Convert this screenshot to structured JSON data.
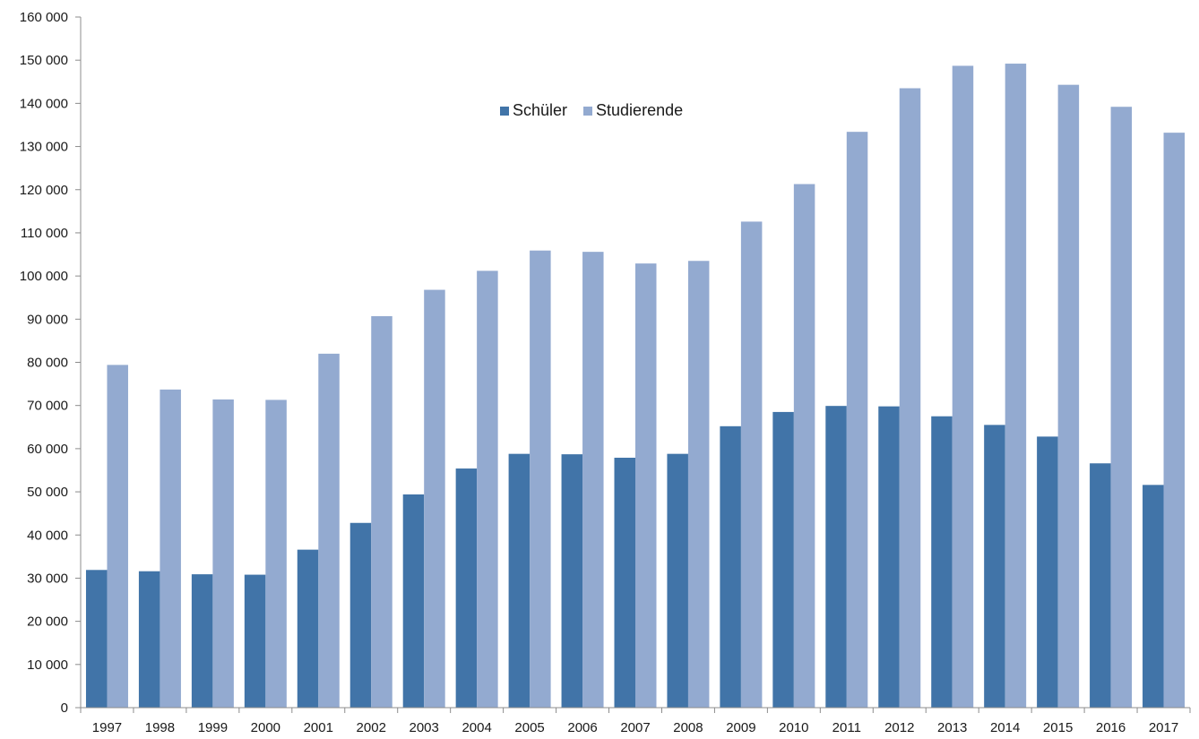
{
  "chart_data": {
    "type": "bar",
    "categories": [
      "1997",
      "1998",
      "1999",
      "2000",
      "2001",
      "2002",
      "2003",
      "2004",
      "2005",
      "2006",
      "2007",
      "2008",
      "2009",
      "2010",
      "2011",
      "2012",
      "2013",
      "2014",
      "2015",
      "2016",
      "2017"
    ],
    "series": [
      {
        "name": "Schüler",
        "color": "#4174a8",
        "values": [
          31900,
          31600,
          30900,
          30800,
          36600,
          42800,
          49400,
          55400,
          58800,
          58700,
          57900,
          58800,
          65200,
          68500,
          69900,
          69800,
          67500,
          65500,
          62800,
          56600,
          51600
        ]
      },
      {
        "name": "Studierende",
        "color": "#93aad0",
        "values": [
          79400,
          73700,
          71400,
          71300,
          82000,
          90700,
          96800,
          101200,
          105900,
          105600,
          102900,
          103500,
          112600,
          121300,
          133400,
          143500,
          148700,
          149200,
          144300,
          139200,
          133200
        ]
      }
    ],
    "y_ticks": [
      "0",
      "10 000",
      "20 000",
      "30 000",
      "40 000",
      "50 000",
      "60 000",
      "70 000",
      "80 000",
      "90 000",
      "100 000",
      "110 000",
      "120 000",
      "130 000",
      "140 000",
      "150 000",
      "160 000"
    ],
    "ylim": [
      0,
      160000
    ],
    "legend": {
      "position": "top-center"
    },
    "grid": false
  }
}
